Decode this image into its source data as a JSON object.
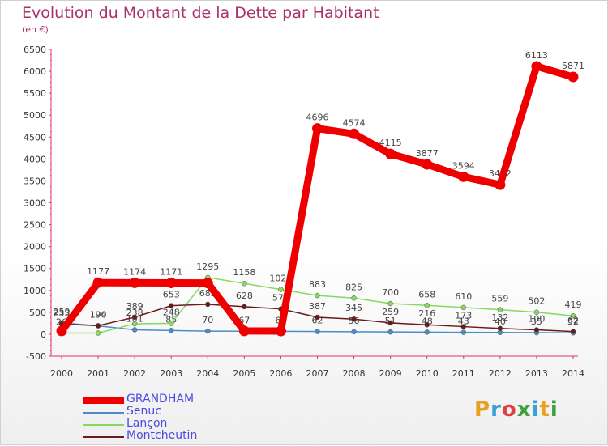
{
  "header": {
    "title": "Evolution du Montant de la Dette par Habitant",
    "subtitle": "(en €)"
  },
  "logo": {
    "text": "Proxiti",
    "colors": [
      "#e8a020",
      "#3aa0d8",
      "#e04040",
      "#40a040",
      "#3aa0d8",
      "#e8a020",
      "#40a040"
    ]
  },
  "chart_data": {
    "type": "line",
    "x": [
      "2000",
      "2001",
      "2002",
      "2003",
      "2004",
      "2005",
      "2006",
      "2007",
      "2008",
      "2009",
      "2010",
      "2011",
      "2012",
      "2013",
      "2014"
    ],
    "ylim": [
      -500,
      6500
    ],
    "yticks": [
      "-500",
      "0",
      "500",
      "1000",
      "1500",
      "2000",
      "2500",
      "3000",
      "3500",
      "4000",
      "4500",
      "5000",
      "5500",
      "6000",
      "6500"
    ],
    "grid": false,
    "legend_position": "bottom-left",
    "series": [
      {
        "name": "Senuc",
        "color": "#4a8cc8",
        "values": [
          259,
          190,
          101,
          85,
          70,
          67,
          65,
          62,
          56,
          51,
          48,
          43,
          40,
          35,
          32
        ],
        "labels": [
          "259",
          "190",
          "101",
          "85",
          "70",
          "67",
          "65",
          "62",
          "56",
          "51",
          "48",
          "43",
          "40",
          "35",
          "32"
        ]
      },
      {
        "name": "Lançon",
        "color": "#88d860",
        "values": [
          26,
          26,
          238,
          248,
          1295,
          1158,
          1022,
          883,
          825,
          700,
          658,
          610,
          559,
          502,
          419
        ],
        "labels": [
          "26",
          "",
          "238",
          "248",
          "1295",
          "1158",
          "1022",
          "883",
          "825",
          "700",
          "658",
          "610",
          "559",
          "502",
          "419"
        ]
      },
      {
        "name": "Montcheutin",
        "color": "#6a1a1a",
        "values": [
          233,
          194,
          389,
          653,
          682,
          628,
          578,
          387,
          345,
          259,
          216,
          173,
          132,
          100,
          62
        ],
        "labels": [
          "233",
          "194",
          "389",
          "653",
          "682",
          "628",
          "578",
          "387",
          "345",
          "259",
          "216",
          "173",
          "132",
          "100",
          "62"
        ]
      },
      {
        "name": "GRANDHAM",
        "color": "#ee0000",
        "values": [
          75,
          1177,
          1174,
          1171,
          1168,
          74,
          73,
          4696,
          4574,
          4115,
          3877,
          3594,
          3412,
          6113,
          5871
        ],
        "labels": [
          "",
          "1177",
          "1174",
          "1171",
          "",
          "",
          "",
          "4696",
          "4574",
          "4115",
          "3877",
          "3594",
          "3412",
          "6113",
          "5871"
        ]
      }
    ],
    "legend": [
      {
        "name": "GRANDHAM",
        "color": "#ee0000",
        "thick": true
      },
      {
        "name": "Senuc",
        "color": "#4a8cc8",
        "thick": false
      },
      {
        "name": "Lançon",
        "color": "#88d860",
        "thick": false
      },
      {
        "name": "Montcheutin",
        "color": "#6a1a1a",
        "thick": false
      }
    ]
  }
}
